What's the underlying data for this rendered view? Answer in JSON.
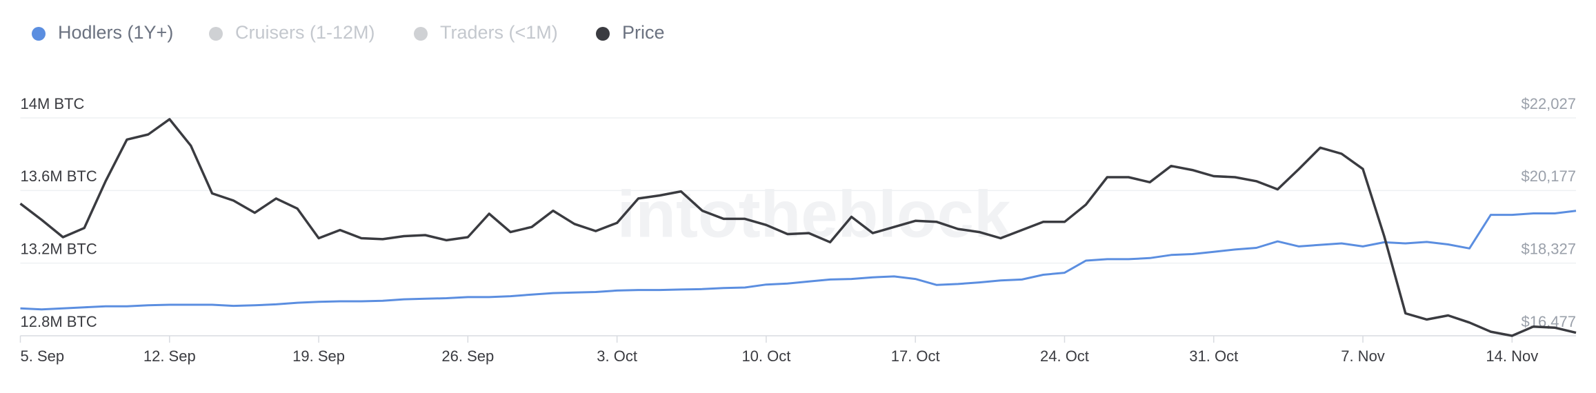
{
  "chart_data": {
    "type": "line",
    "watermark": "intotheblock",
    "legend_items": [
      {
        "name": "Hodlers (1Y+)",
        "color": "#5b8ee0",
        "active": true
      },
      {
        "name": "Cruisers (1-12M)",
        "color": "#cfd1d4",
        "active": false
      },
      {
        "name": "Traders (<1M)",
        "color": "#cfd1d4",
        "active": false
      },
      {
        "name": "Price",
        "color": "#3a3b40",
        "active": true
      }
    ],
    "categories": [
      "5. Sep",
      null,
      null,
      null,
      null,
      null,
      null,
      "12. Sep",
      null,
      null,
      null,
      null,
      null,
      null,
      "19. Sep",
      null,
      null,
      null,
      null,
      null,
      null,
      "26. Sep",
      null,
      null,
      null,
      null,
      null,
      null,
      "3. Oct",
      null,
      null,
      null,
      null,
      null,
      null,
      "10. Oct",
      null,
      null,
      null,
      null,
      null,
      null,
      "17. Oct",
      null,
      null,
      null,
      null,
      null,
      null,
      "24. Oct",
      null,
      null,
      null,
      null,
      null,
      null,
      "31. Oct",
      null,
      null,
      null,
      null,
      null,
      null,
      "7. Nov",
      null,
      null,
      null,
      null,
      null,
      null,
      "14. Nov",
      null,
      null,
      null
    ],
    "series": [
      {
        "name": "Hodlers (1Y+)",
        "color": "#5b8ee0",
        "axis": "y",
        "values": [
          12951000,
          12945000,
          12951000,
          12957000,
          12962000,
          12962000,
          12968000,
          12971000,
          12971000,
          12971000,
          12965000,
          12968000,
          12973000,
          12982000,
          12987000,
          12990000,
          12990000,
          12993000,
          13001000,
          13004000,
          13007000,
          13013000,
          13013000,
          13018000,
          13027000,
          13035000,
          13038000,
          13041000,
          13049000,
          13052000,
          13052000,
          13055000,
          13057000,
          13063000,
          13066000,
          13082000,
          13088000,
          13099000,
          13110000,
          13113000,
          13122000,
          13127000,
          13113000,
          13080000,
          13085000,
          13094000,
          13105000,
          13110000,
          13136000,
          13147000,
          13214000,
          13222000,
          13222000,
          13228000,
          13245000,
          13250000,
          13262000,
          13275000,
          13284000,
          13320000,
          13292000,
          13301000,
          13309000,
          13292000,
          13315000,
          13309000,
          13317000,
          13303000,
          13281000,
          13466000,
          13466000,
          13474000,
          13474000,
          13488000
        ]
      },
      {
        "name": "Price",
        "color": "#3a3b40",
        "axis": "y2",
        "values": [
          19844,
          19430,
          18989,
          19222,
          20414,
          21476,
          21605,
          21994,
          21320,
          20103,
          19922,
          19611,
          19974,
          19715,
          18963,
          19171,
          18963,
          18938,
          19015,
          19041,
          18912,
          18989,
          19585,
          19119,
          19248,
          19663,
          19326,
          19145,
          19352,
          19974,
          20051,
          20155,
          19663,
          19456,
          19456,
          19300,
          19067,
          19093,
          18860,
          19507,
          19093,
          19248,
          19404,
          19378,
          19197,
          19119,
          18963,
          19171,
          19378,
          19378,
          19818,
          20517,
          20517,
          20388,
          20802,
          20699,
          20543,
          20517,
          20414,
          20207,
          20725,
          21269,
          21113,
          20725,
          19015,
          17047,
          16891,
          16995,
          16814,
          16581,
          16477,
          16710,
          16684,
          16555
        ]
      }
    ],
    "ylim": [
      12800000,
      14000000
    ],
    "yticks": [
      {
        "value": 12800000,
        "label": "12.8M BTC"
      },
      {
        "value": 13200000,
        "label": "13.2M BTC"
      },
      {
        "value": 13600000,
        "label": "13.6M BTC"
      },
      {
        "value": 14000000,
        "label": "14M BTC"
      }
    ],
    "y2lim": [
      16477,
      22027
    ],
    "y2ticks": [
      {
        "value": 16477,
        "label": "$16,477"
      },
      {
        "value": 18327,
        "label": "$18,327"
      },
      {
        "value": 20177,
        "label": "$20,177"
      },
      {
        "value": 22027,
        "label": "$22,027"
      }
    ],
    "grid": true
  }
}
